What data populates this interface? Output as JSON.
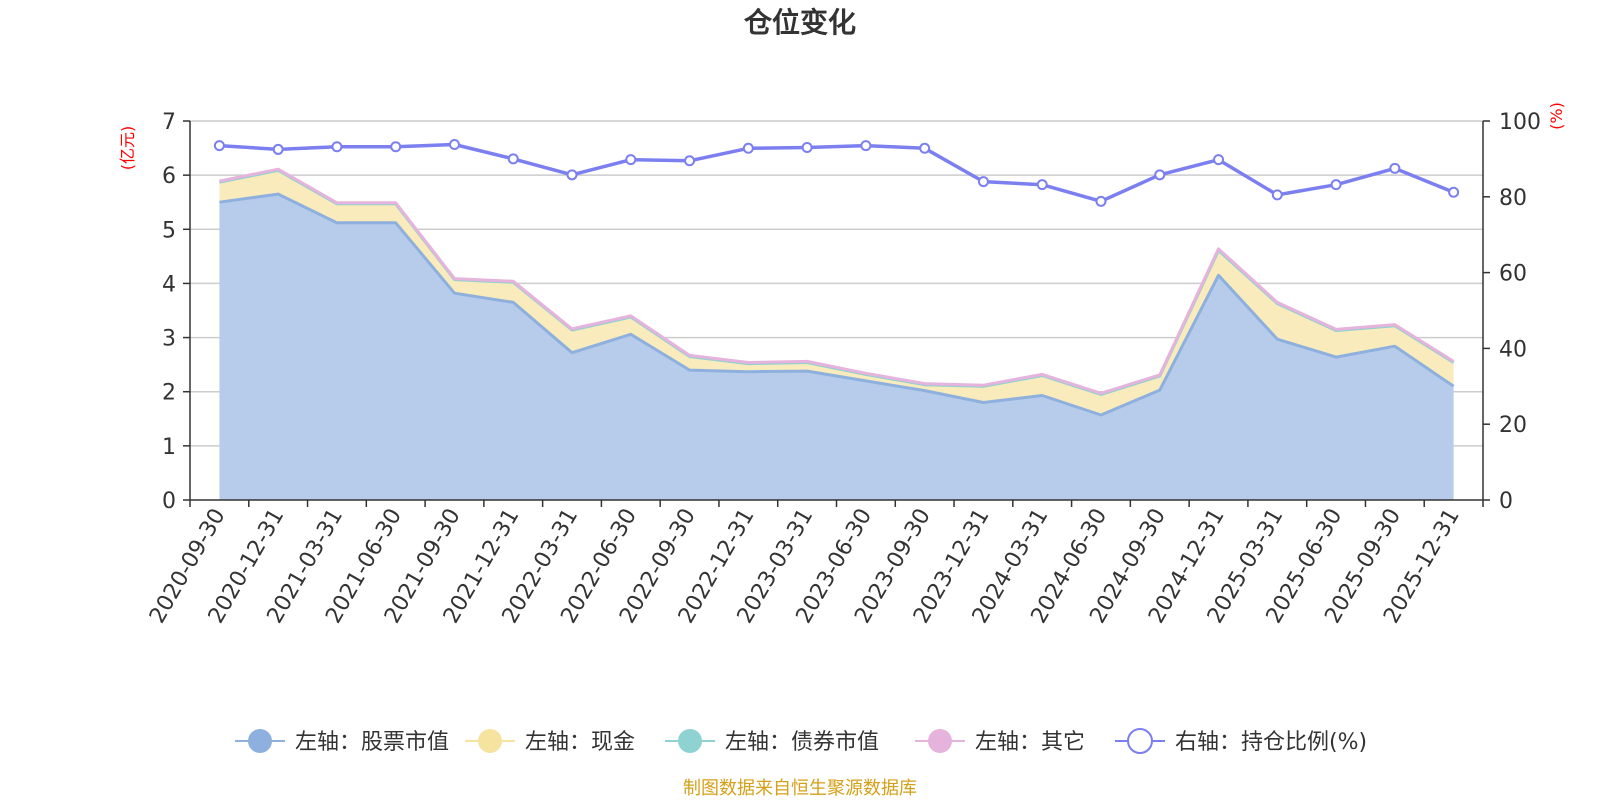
{
  "chart_data": {
    "type": "area",
    "title": "仓位变化",
    "left_axis_unit": "(亿元)",
    "right_axis_unit": "(%)",
    "ylim_left": [
      0,
      7
    ],
    "ylim_right": [
      0,
      100
    ],
    "yticks_left": [
      "0",
      "1",
      "2",
      "3",
      "4",
      "5",
      "6",
      "7"
    ],
    "yticks_right": [
      "0",
      "20",
      "40",
      "60",
      "80",
      "100"
    ],
    "categories": [
      "2020-09-30",
      "2020-12-31",
      "2021-03-31",
      "2021-06-30",
      "2021-09-30",
      "2021-12-31",
      "2022-03-31",
      "2022-06-30",
      "2022-09-30",
      "2022-12-31",
      "2023-03-31",
      "2023-06-30",
      "2023-09-30",
      "2023-12-31",
      "2024-03-31",
      "2024-06-30",
      "2024-09-30",
      "2024-12-31",
      "2025-03-31",
      "2025-06-30",
      "2025-09-30",
      "2025-12-31"
    ],
    "series": [
      {
        "name": "左轴：股票市值",
        "axis": "left",
        "color": "#8eb0de",
        "fill": "#b7cceb",
        "values": [
          5.5,
          5.65,
          5.12,
          5.12,
          3.82,
          3.65,
          2.72,
          3.06,
          2.4,
          2.37,
          2.38,
          2.2,
          2.02,
          1.8,
          1.93,
          1.57,
          2.03,
          4.15,
          2.97,
          2.64,
          2.84,
          2.1
        ]
      },
      {
        "name": "左轴：现金",
        "axis": "left",
        "color": "#f6e3a0",
        "fill": "#faebbc",
        "values": [
          0.37,
          0.44,
          0.35,
          0.35,
          0.25,
          0.37,
          0.42,
          0.32,
          0.25,
          0.15,
          0.16,
          0.12,
          0.11,
          0.3,
          0.37,
          0.38,
          0.26,
          0.46,
          0.66,
          0.49,
          0.38,
          0.44
        ]
      },
      {
        "name": "左轴：债券市值",
        "axis": "left",
        "color": "#8fd2d2",
        "fill": "#b3e2e2",
        "values": [
          0,
          0,
          0,
          0,
          0,
          0,
          0,
          0,
          0,
          0,
          0,
          0,
          0,
          0,
          0,
          0,
          0,
          0,
          0,
          0,
          0,
          0
        ]
      },
      {
        "name": "左轴：其它",
        "axis": "left",
        "color": "#e6b3dc",
        "fill": "#efcbe9",
        "values": [
          0.02,
          0.02,
          0.02,
          0.02,
          0.02,
          0.02,
          0.02,
          0.02,
          0.02,
          0.02,
          0.02,
          0.02,
          0.02,
          0.02,
          0.02,
          0.02,
          0.02,
          0.03,
          0.02,
          0.02,
          0.02,
          0.02
        ]
      },
      {
        "name": "右轴：持仓比例(%)",
        "axis": "right",
        "color": "#7b7ff0",
        "values": [
          93.5,
          92.5,
          93.2,
          93.2,
          93.8,
          90.0,
          85.8,
          89.8,
          89.5,
          92.8,
          93.0,
          93.5,
          92.8,
          84.0,
          83.2,
          78.8,
          85.8,
          89.8,
          80.5,
          83.2,
          87.5,
          81.2
        ]
      }
    ]
  },
  "footer": {
    "source": "制图数据来自恒生聚源数据库"
  }
}
